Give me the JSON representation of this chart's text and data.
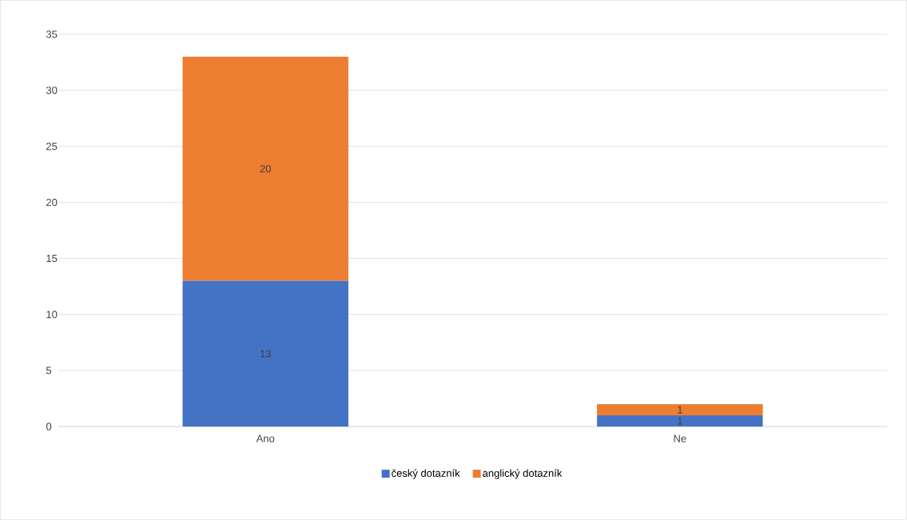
{
  "chart_data": {
    "type": "bar",
    "stacked": true,
    "categories": [
      "Ano",
      "Ne"
    ],
    "series": [
      {
        "name": "český dotazník",
        "color": "#4472c4",
        "values": [
          13,
          1
        ]
      },
      {
        "name": "anglický dotazník",
        "color": "#ed7d31",
        "values": [
          20,
          1
        ]
      }
    ],
    "ylim": [
      0,
      35
    ],
    "yticks": [
      0,
      5,
      10,
      15,
      20,
      25,
      30,
      35
    ],
    "grid": "y",
    "legend": "bottom",
    "data_labels": true
  }
}
